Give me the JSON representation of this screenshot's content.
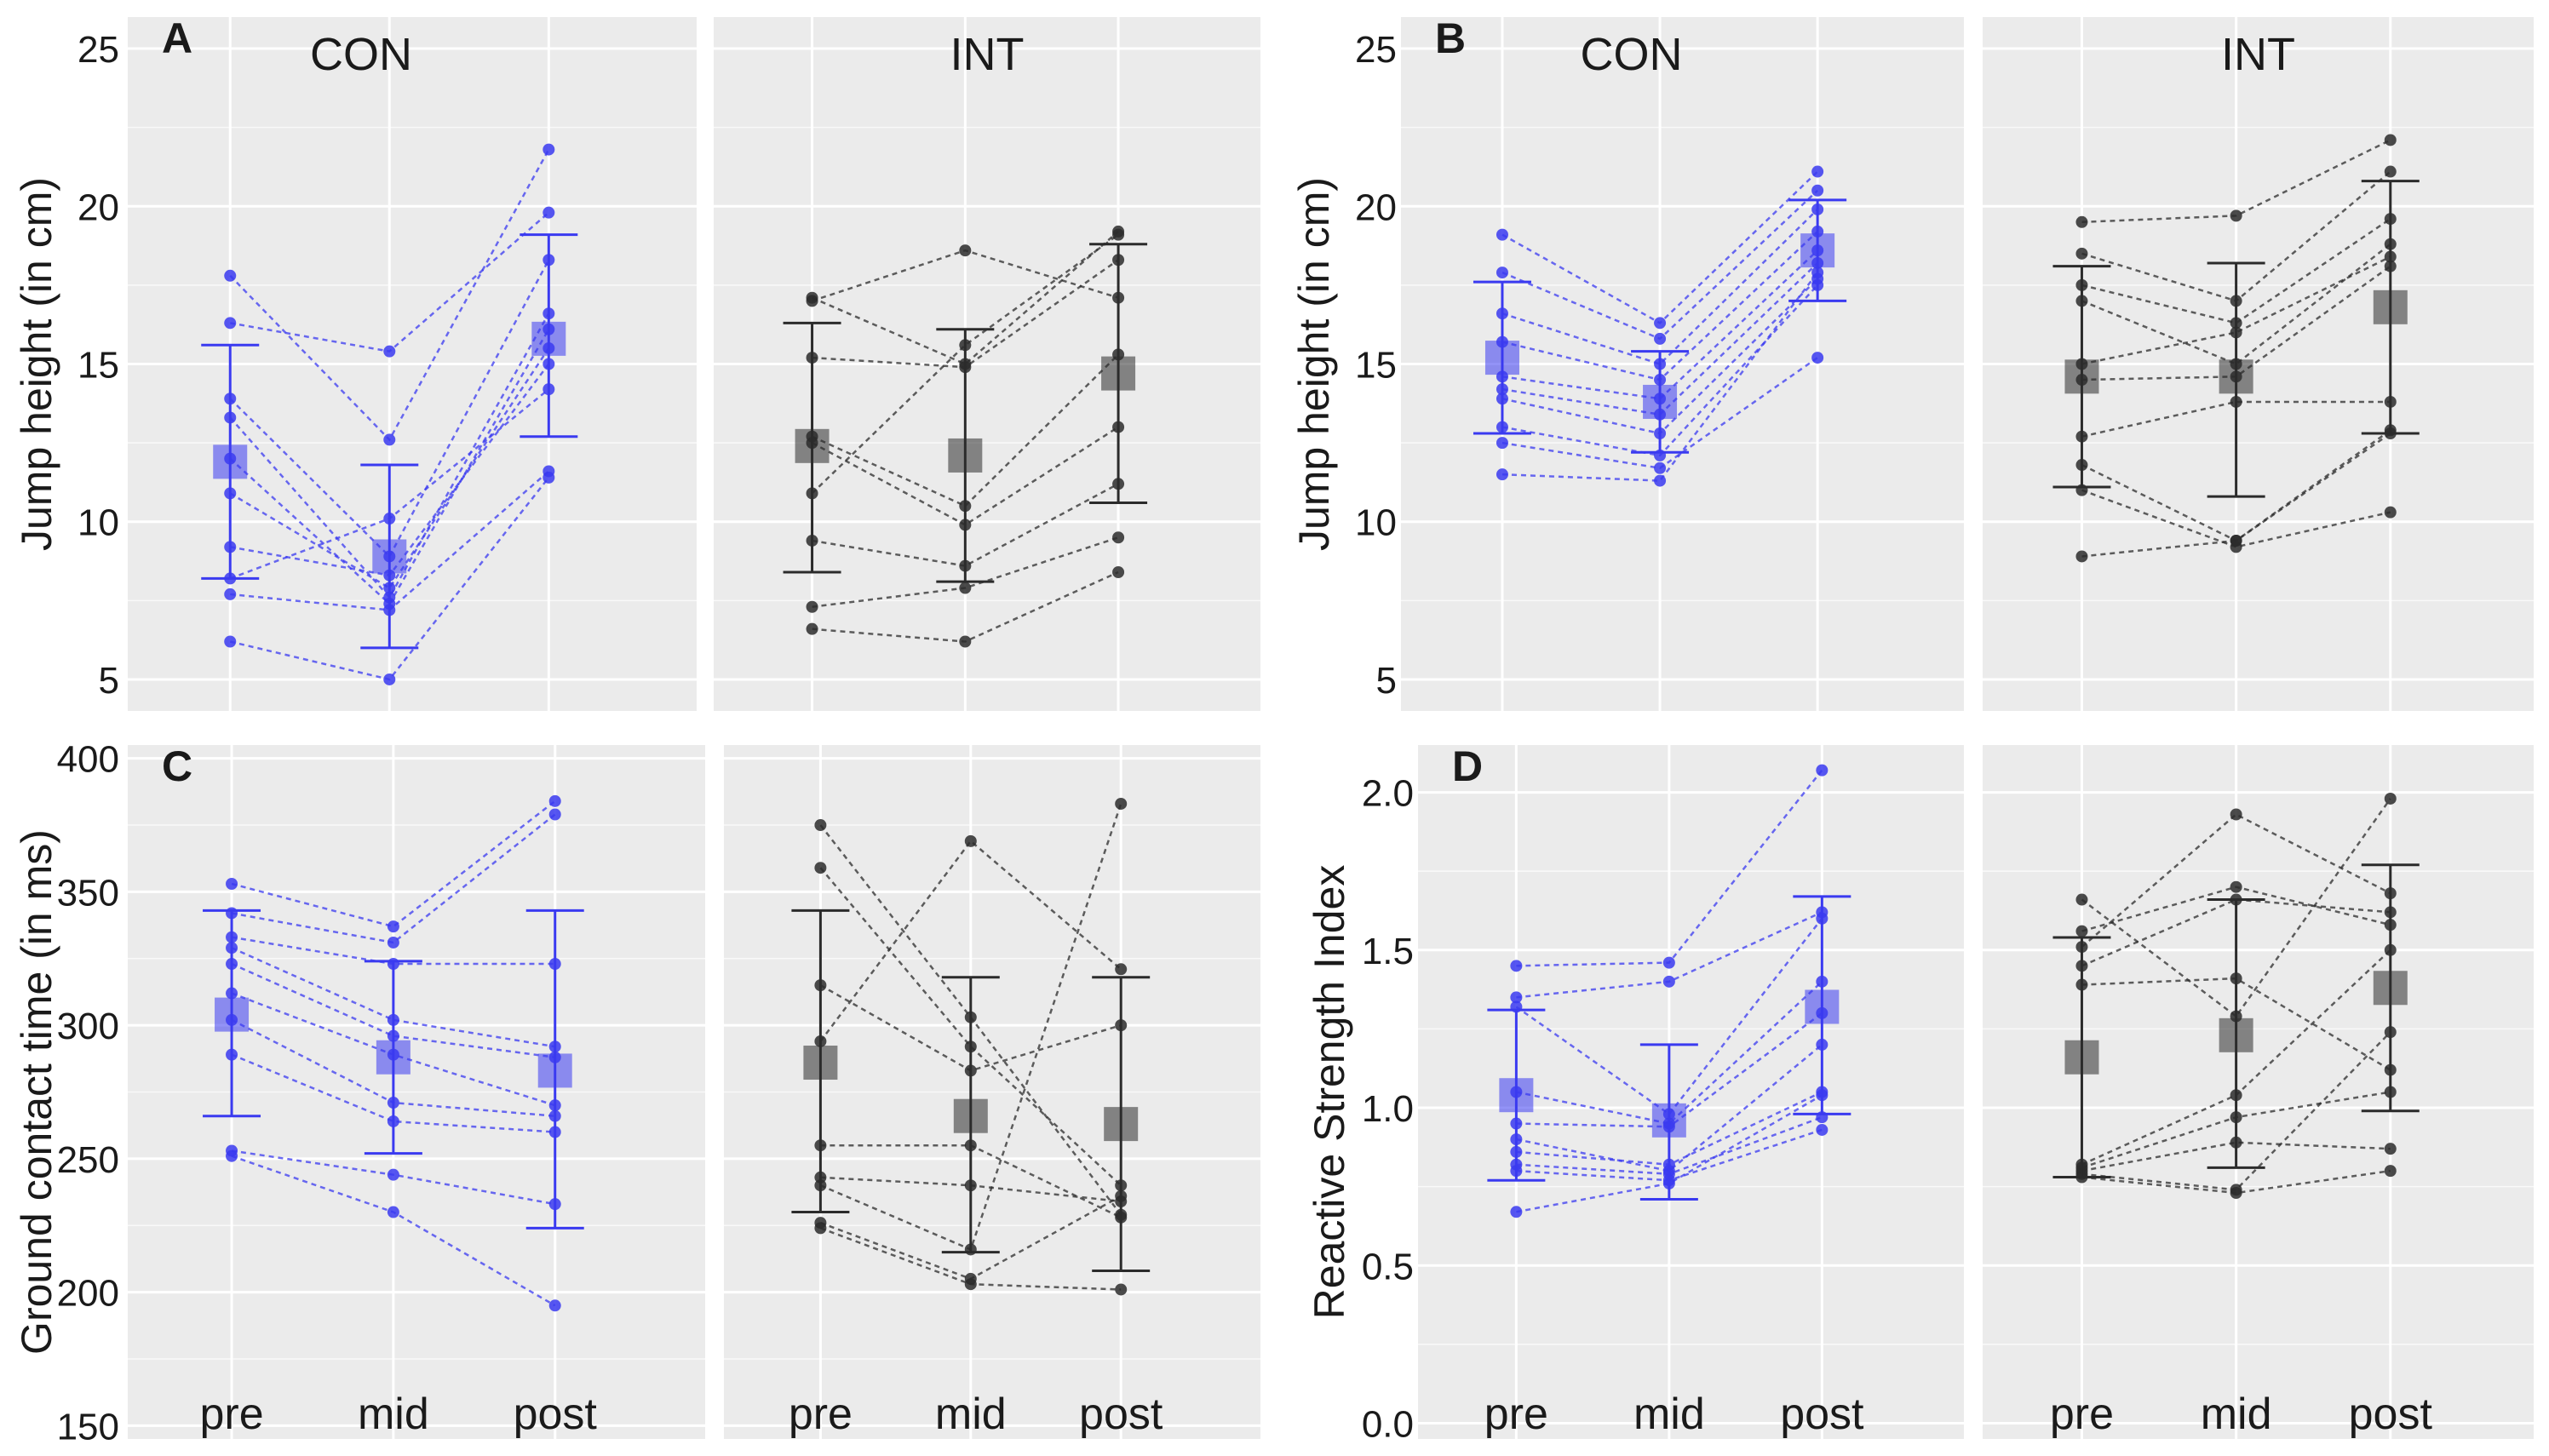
{
  "colors": {
    "con": "#3a3af0",
    "int": "#2b2b2b",
    "panel_bg": "#ebebeb",
    "grid": "#ffffff",
    "text": "#1a1a1a"
  },
  "chart_data": [
    {
      "type": "scatter",
      "panel": "A",
      "title": "A",
      "ylabel": "Jump height (in cm)",
      "ylim": [
        4,
        26
      ],
      "yticks": [
        5,
        10,
        15,
        20,
        25
      ],
      "ytick_labels": [
        "5",
        "10",
        "15",
        "20",
        "25"
      ],
      "categories": [
        "pre",
        "mid",
        "post"
      ],
      "show_xlabels": false,
      "groups": [
        {
          "name": "CON",
          "color_key": "con",
          "mean": [
            11.9,
            8.9,
            15.8
          ],
          "sd_low": [
            8.2,
            6.0,
            12.7
          ],
          "sd_high": [
            15.6,
            11.8,
            19.1
          ],
          "subjects": [
            [
              17.8,
              12.6,
              21.8
            ],
            [
              16.3,
              15.4,
              19.8
            ],
            [
              13.9,
              8.9,
              18.3
            ],
            [
              13.3,
              7.6,
              16.6
            ],
            [
              12.0,
              7.4,
              16.1
            ],
            [
              10.9,
              7.9,
              15.5
            ],
            [
              9.2,
              8.3,
              15.0
            ],
            [
              8.2,
              10.1,
              14.2
            ],
            [
              7.7,
              7.2,
              11.6
            ],
            [
              6.2,
              5.0,
              11.4
            ]
          ]
        },
        {
          "name": "INT",
          "color_key": "int",
          "mean": [
            12.4,
            12.1,
            14.7
          ],
          "sd_low": [
            8.4,
            8.1,
            10.6
          ],
          "sd_high": [
            16.3,
            16.1,
            18.8
          ],
          "subjects": [
            [
              17.1,
              15.0,
              19.2
            ],
            [
              17.0,
              18.6,
              17.1
            ],
            [
              15.2,
              14.9,
              18.3
            ],
            [
              12.7,
              10.5,
              15.3
            ],
            [
              12.5,
              9.9,
              13.0
            ],
            [
              10.9,
              15.6,
              19.1
            ],
            [
              9.4,
              8.6,
              11.2
            ],
            [
              7.3,
              7.9,
              9.5
            ],
            [
              6.6,
              6.2,
              8.4
            ]
          ]
        }
      ]
    },
    {
      "type": "scatter",
      "panel": "B",
      "title": "B",
      "ylabel": "Jump height (in cm)",
      "ylim": [
        4,
        26
      ],
      "yticks": [
        5,
        10,
        15,
        20,
        25
      ],
      "ytick_labels": [
        "5",
        "10",
        "15",
        "20",
        "25"
      ],
      "categories": [
        "pre",
        "mid",
        "post"
      ],
      "show_xlabels": false,
      "groups": [
        {
          "name": "CON",
          "color_key": "con",
          "mean": [
            15.2,
            13.8,
            18.6
          ],
          "sd_low": [
            12.8,
            12.2,
            17.0
          ],
          "sd_high": [
            17.6,
            15.4,
            20.2
          ],
          "subjects": [
            [
              19.1,
              16.3,
              21.1
            ],
            [
              17.9,
              15.8,
              20.5
            ],
            [
              16.6,
              15.0,
              19.9
            ],
            [
              15.7,
              14.5,
              19.2
            ],
            [
              14.6,
              13.9,
              18.6
            ],
            [
              14.2,
              13.4,
              18.2
            ],
            [
              13.9,
              12.8,
              17.7
            ],
            [
              13.0,
              12.1,
              17.5
            ],
            [
              12.5,
              11.7,
              15.2
            ],
            [
              11.5,
              11.3,
              17.9
            ]
          ]
        },
        {
          "name": "INT",
          "color_key": "int",
          "mean": [
            14.6,
            14.6,
            16.8
          ],
          "sd_low": [
            11.1,
            10.8,
            12.8
          ],
          "sd_high": [
            18.1,
            18.2,
            20.8
          ],
          "subjects": [
            [
              19.5,
              19.7,
              22.1
            ],
            [
              18.5,
              17.0,
              21.1
            ],
            [
              17.5,
              16.3,
              19.6
            ],
            [
              17.0,
              15.0,
              18.8
            ],
            [
              15.0,
              16.0,
              18.4
            ],
            [
              14.5,
              14.6,
              18.1
            ],
            [
              12.7,
              13.8,
              13.8
            ],
            [
              11.8,
              9.4,
              12.9
            ],
            [
              11.0,
              9.2,
              10.3
            ],
            [
              8.9,
              9.4,
              12.8
            ]
          ]
        }
      ]
    },
    {
      "type": "scatter",
      "panel": "C",
      "title": "C",
      "ylabel": "Ground contact time (in ms)",
      "ylim": [
        145,
        405
      ],
      "yticks": [
        150,
        200,
        250,
        300,
        350,
        400
      ],
      "ytick_labels": [
        "150",
        "200",
        "250",
        "300",
        "350",
        "400"
      ],
      "categories": [
        "pre",
        "mid",
        "post"
      ],
      "show_xlabels": true,
      "groups": [
        {
          "name": "CON",
          "color_key": "con",
          "mean": [
            304,
            288,
            283
          ],
          "sd_low": [
            266,
            252,
            224
          ],
          "sd_high": [
            343,
            324,
            343
          ],
          "subjects": [
            [
              353,
              337,
              384
            ],
            [
              342,
              331,
              379
            ],
            [
              333,
              323,
              323
            ],
            [
              329,
              302,
              292
            ],
            [
              323,
              296,
              288
            ],
            [
              312,
              289,
              270
            ],
            [
              302,
              271,
              266
            ],
            [
              289,
              264,
              260
            ],
            [
              253,
              244,
              233
            ],
            [
              251,
              230,
              195
            ]
          ]
        },
        {
          "name": "INT",
          "color_key": "int",
          "mean": [
            286,
            266,
            263
          ],
          "sd_low": [
            230,
            215,
            208
          ],
          "sd_high": [
            343,
            318,
            318
          ],
          "subjects": [
            [
              375,
              303,
              229
            ],
            [
              359,
              292,
              240
            ],
            [
              315,
              283,
              300
            ],
            [
              294,
              369,
              321
            ],
            [
              255,
              255,
              228
            ],
            [
              243,
              240,
              234
            ],
            [
              240,
              216,
              383
            ],
            [
              226,
              205,
              236
            ],
            [
              224,
              203,
              201
            ]
          ]
        }
      ]
    },
    {
      "type": "scatter",
      "panel": "D",
      "title": "D",
      "ylabel": "Reactive Strength Index",
      "ylim": [
        -0.05,
        2.15
      ],
      "yticks": [
        0.0,
        0.5,
        1.0,
        1.5,
        2.0
      ],
      "ytick_labels": [
        "0.0",
        "0.5",
        "1.0",
        "1.5",
        "2.0"
      ],
      "categories": [
        "pre",
        "mid",
        "post"
      ],
      "show_xlabels": true,
      "groups": [
        {
          "name": "CON",
          "color_key": "con",
          "mean": [
            1.04,
            0.96,
            1.32
          ],
          "sd_low": [
            0.77,
            0.71,
            0.98
          ],
          "sd_high": [
            1.31,
            1.2,
            1.67
          ],
          "subjects": [
            [
              1.45,
              1.46,
              2.07
            ],
            [
              1.35,
              1.4,
              1.62
            ],
            [
              1.32,
              0.98,
              1.6
            ],
            [
              1.05,
              0.95,
              1.4
            ],
            [
              0.95,
              0.94,
              1.3
            ],
            [
              0.9,
              0.8,
              1.2
            ],
            [
              0.86,
              0.82,
              1.05
            ],
            [
              0.82,
              0.79,
              0.97
            ],
            [
              0.8,
              0.77,
              0.93
            ],
            [
              0.67,
              0.76,
              1.04
            ]
          ]
        },
        {
          "name": "INT",
          "color_key": "int",
          "mean": [
            1.16,
            1.23,
            1.38
          ],
          "sd_low": [
            0.78,
            0.81,
            0.99
          ],
          "sd_high": [
            1.54,
            1.66,
            1.77
          ],
          "subjects": [
            [
              1.66,
              1.29,
              1.98
            ],
            [
              1.56,
              1.7,
              1.58
            ],
            [
              1.51,
              1.93,
              1.68
            ],
            [
              1.45,
              1.66,
              1.62
            ],
            [
              1.39,
              1.41,
              1.12
            ],
            [
              0.82,
              1.04,
              1.5
            ],
            [
              0.81,
              0.97,
              1.05
            ],
            [
              0.8,
              0.89,
              0.87
            ],
            [
              0.79,
              0.74,
              1.24
            ],
            [
              0.78,
              0.73,
              0.8
            ]
          ]
        }
      ]
    }
  ]
}
